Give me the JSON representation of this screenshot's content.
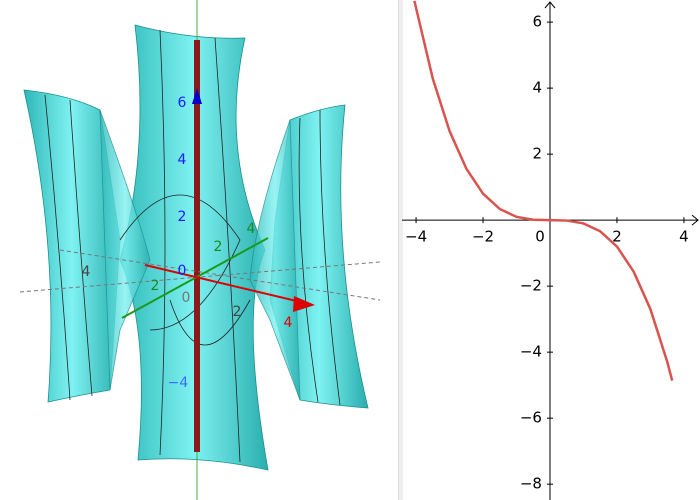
{
  "view3d": {
    "labels": [
      "6",
      "4",
      "2",
      "0",
      "−4",
      "2",
      "4",
      "0",
      "2",
      "4",
      "2",
      "4"
    ]
  },
  "chart_data": {
    "type": "line",
    "x": [
      -4.05,
      -3.5,
      -3,
      -2.5,
      -2,
      -1.5,
      -1,
      -0.5,
      0,
      0.5,
      1,
      1.5,
      2,
      2.5,
      3,
      3.5,
      3.65
    ],
    "series": [
      {
        "color": "#d9534f",
        "values": [
          6.643,
          4.288,
          2.7,
          1.563,
          0.8,
          0.338,
          0.1,
          0.013,
          0,
          -0.013,
          -0.1,
          -0.338,
          -0.8,
          -1.563,
          -2.7,
          -4.288,
          -4.863
        ]
      }
    ],
    "xlim": [
      -4.42,
      4.48
    ],
    "ylim": [
      -8.48,
      6.67
    ],
    "xticks": [
      {
        "value": -4,
        "label": "−4"
      },
      {
        "value": -2,
        "label": "−2"
      },
      0,
      2,
      4
    ],
    "yticks": [
      {
        "value": -8,
        "label": "−8"
      },
      {
        "value": -6,
        "label": "−6"
      },
      {
        "value": -4,
        "label": "−4"
      },
      {
        "value": -2,
        "label": "−2"
      },
      2,
      4,
      6
    ],
    "grid": false
  }
}
